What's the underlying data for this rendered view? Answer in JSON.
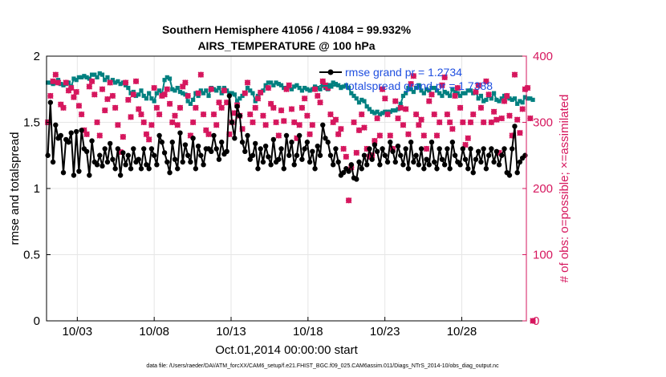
{
  "colors": {
    "rmse": "#000000",
    "spread": "#008080",
    "obs": "#d6175e",
    "legend_text": "#1f4fe0",
    "grid": "#e6e6e6"
  },
  "chart_data": {
    "type": "line",
    "title": "Southern Hemisphere 41056 / 41084 = 99.932%",
    "subtitle": "AIRS_TEMPERATURE @ 100 hPa",
    "xlabel": "Oct.01,2014 00:00:00 start",
    "ylabel_left": "rmse and totalspread",
    "ylabel_right": "# of obs: o=possible; ×=assimilated",
    "footer": "data file: /Users/raeder/DAI/ATM_forcXX/CAM6_setup/f.e21.FHIST_BGC.f09_025.CAM6assim.011/Diags_NTrS_2014-10/obs_diag_output.nc",
    "x_ticks": [
      {
        "day": 3,
        "label": "10/03"
      },
      {
        "day": 8,
        "label": "10/08"
      },
      {
        "day": 13,
        "label": "10/13"
      },
      {
        "day": 18,
        "label": "10/18"
      },
      {
        "day": 23,
        "label": "10/23"
      },
      {
        "day": 28,
        "label": "10/28"
      }
    ],
    "xlim": [
      1,
      32.2
    ],
    "ylim_left": [
      0,
      2
    ],
    "ylim_right": [
      0,
      400
    ],
    "y_ticks_left": [
      "0",
      "0.5",
      "1",
      "1.5",
      "2"
    ],
    "y_ticks_right": [
      "0",
      "100",
      "200",
      "300",
      "400"
    ],
    "grid": true,
    "legend_placement": "top-right",
    "series": [
      {
        "name": "rmse grand pr = 1.2734",
        "axis": "left",
        "values": [
          1.25,
          1.65,
          1.2,
          1.48,
          1.38,
          1.4,
          1.12,
          1.37,
          1.35,
          1.42,
          1.1,
          1.43,
          1.13,
          1.44,
          1.3,
          1.28,
          1.1,
          1.36,
          1.2,
          1.18,
          1.25,
          1.17,
          1.3,
          1.2,
          1.34,
          1.22,
          1.15,
          1.3,
          1.1,
          1.27,
          1.18,
          1.25,
          1.15,
          1.3,
          1.2,
          1.22,
          1.15,
          1.3,
          1.18,
          1.15,
          1.3,
          1.25,
          1.18,
          1.4,
          1.35,
          1.27,
          1.2,
          1.12,
          1.35,
          1.22,
          1.15,
          1.42,
          1.2,
          1.33,
          1.25,
          1.2,
          1.38,
          1.15,
          1.32,
          1.25,
          1.18,
          1.3,
          1.3,
          1.28,
          1.4,
          1.3,
          1.22,
          1.35,
          1.26,
          1.28,
          1.7,
          1.5,
          1.38,
          1.62,
          1.55,
          1.35,
          1.28,
          1.4,
          1.22,
          1.25,
          1.34,
          1.15,
          1.3,
          1.2,
          1.32,
          1.24,
          1.18,
          1.37,
          1.2,
          1.22,
          1.3,
          1.15,
          1.4,
          1.25,
          1.35,
          1.18,
          1.25,
          1.4,
          1.22,
          1.3,
          1.35,
          1.2,
          1.28,
          1.15,
          1.32,
          1.25,
          1.48,
          1.38,
          1.35,
          1.25,
          1.18,
          1.3,
          1.2,
          1.1,
          1.12,
          1.15,
          1.13,
          1.18,
          1.08,
          1.07,
          1.2,
          1.15,
          1.25,
          1.18,
          1.3,
          1.22,
          1.33,
          1.28,
          1.18,
          1.3,
          1.25,
          1.2,
          1.35,
          1.28,
          1.2,
          1.32,
          1.25,
          1.18,
          1.3,
          1.15,
          1.35,
          1.2,
          1.25,
          1.18,
          1.3,
          1.15,
          1.22,
          1.18,
          1.35,
          1.2,
          1.15,
          1.3,
          1.22,
          1.18,
          1.3,
          1.15,
          1.35,
          1.25,
          1.2,
          1.18,
          1.3,
          1.22,
          1.15,
          1.3,
          1.12,
          1.22,
          1.28,
          1.2,
          1.3,
          1.15,
          1.25,
          1.3,
          1.2,
          1.28,
          1.18,
          1.25,
          1.3,
          1.12,
          1.1,
          1.3,
          1.47,
          1.12,
          1.2,
          1.23,
          1.25
        ]
      },
      {
        "name": "totalspread grand pr = 1.7388",
        "axis": "left",
        "values": [
          1.8,
          1.8,
          1.79,
          1.8,
          1.82,
          1.79,
          1.78,
          1.79,
          1.8,
          1.77,
          1.83,
          1.82,
          1.84,
          1.84,
          1.85,
          1.84,
          1.83,
          1.86,
          1.86,
          1.84,
          1.87,
          1.86,
          1.82,
          1.84,
          1.8,
          1.82,
          1.8,
          1.81,
          1.79,
          1.8,
          1.78,
          1.76,
          1.72,
          1.73,
          1.7,
          1.71,
          1.74,
          1.7,
          1.68,
          1.72,
          1.68,
          1.66,
          1.72,
          1.74,
          1.71,
          1.82,
          1.84,
          1.83,
          1.75,
          1.74,
          1.76,
          1.73,
          1.72,
          1.71,
          1.66,
          1.64,
          1.67,
          1.72,
          1.7,
          1.74,
          1.72,
          1.74,
          1.7,
          1.76,
          1.75,
          1.74,
          1.76,
          1.72,
          1.76,
          1.74,
          1.72,
          1.72,
          1.71,
          1.66,
          1.68,
          1.7,
          1.72,
          1.76,
          1.74,
          1.72,
          1.66,
          1.7,
          1.72,
          1.74,
          1.78,
          1.8,
          1.8,
          1.78,
          1.8,
          1.79,
          1.78,
          1.76,
          1.76,
          1.77,
          1.75,
          1.77,
          1.78,
          1.76,
          1.74,
          1.76,
          1.75,
          1.74,
          1.75,
          1.77,
          1.76,
          1.75,
          1.78,
          1.76,
          1.75,
          1.77,
          1.8,
          1.79,
          1.78,
          1.76,
          1.77,
          1.78,
          1.76,
          1.72,
          1.7,
          1.68,
          1.65,
          1.67,
          1.66,
          1.62,
          1.6,
          1.58,
          1.57,
          1.58,
          1.56,
          1.57,
          1.58,
          1.58,
          1.58,
          1.59,
          1.59,
          1.6,
          1.64,
          1.7,
          1.72,
          1.76,
          1.75,
          1.73,
          1.76,
          1.78,
          1.74,
          1.72,
          1.75,
          1.74,
          1.76,
          1.76,
          1.74,
          1.72,
          1.7,
          1.73,
          1.72,
          1.7,
          1.75,
          1.73,
          1.72,
          1.7,
          1.72,
          1.72,
          1.74,
          1.74,
          1.72,
          1.73,
          1.68,
          1.7,
          1.66,
          1.67,
          1.7,
          1.68,
          1.72,
          1.67,
          1.66,
          1.68,
          1.7,
          1.69,
          1.68,
          1.67,
          1.68,
          1.64,
          1.66,
          1.65,
          1.69,
          1.68,
          1.68,
          1.67
        ]
      },
      {
        "name": "# of obs possible / assimilated",
        "axis": "right",
        "type": "scatter",
        "values": [
          300,
          340,
          362,
          372,
          360,
          327,
          322,
          360,
          348,
          352,
          338,
          346,
          325,
          312,
          288,
          282,
          354,
          362,
          342,
          300,
          280,
          350,
          318,
          335,
          360,
          340,
          322,
          296,
          255,
          278,
          360,
          334,
          308,
          342,
          362,
          320,
          312,
          300,
          282,
          274,
          296,
          352,
          322,
          312,
          340,
          342,
          350,
          328,
          300,
          310,
          296,
          322,
          354,
          360,
          340,
          280,
          300,
          322,
          344,
          372,
          312,
          288,
          282,
          350,
          312,
          296,
          330,
          322,
          348,
          330,
          282,
          300,
          314,
          326,
          310,
          290,
          344,
          360,
          312,
          300,
          322,
          336,
          345,
          310,
          296,
          352,
          328,
          322,
          300,
          280,
          318,
          302,
          350,
          356,
          320,
          300,
          276,
          296,
          322,
          336,
          310,
          282,
          296,
          350,
          340,
          330,
          362,
          356,
          352,
          312,
          300,
          304,
          282,
          290,
          260,
          248,
          182,
          232,
          300,
          254,
          288,
          312,
          292,
          260,
          248,
          250,
          272,
          306,
          280,
          350,
          336,
          312,
          280,
          260,
          332,
          306,
          322,
          296,
          320,
          282,
          358,
          370,
          312,
          296,
          304,
          280,
          260,
          332,
          342,
          312,
          280,
          300,
          356,
          368,
          312,
          300,
          290,
          340,
          352,
          322,
          300,
          266,
          276,
          300,
          312,
          346,
          356,
          322,
          300,
          362,
          342,
          300,
          316,
          304,
          254,
          306,
          332,
          340,
          310,
          280,
          372,
          304,
          284,
          320,
          350,
          352,
          306,
          0
        ]
      }
    ]
  }
}
